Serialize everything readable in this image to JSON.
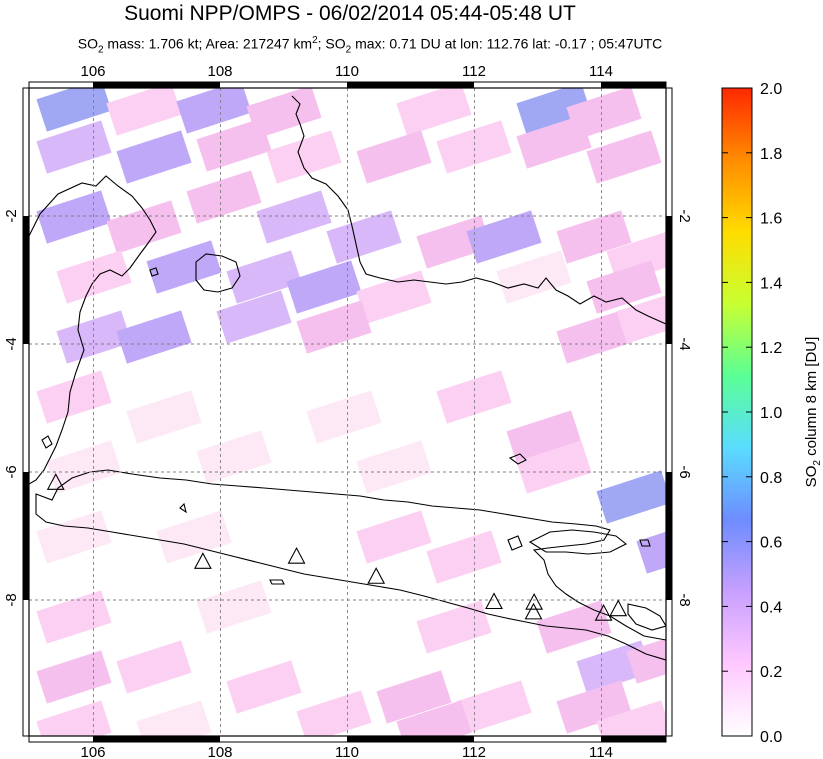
{
  "title": "Suomi NPP/OMPS - 06/02/2014 05:44-05:48 UT",
  "subtitle": {
    "mass_prefix": "SO",
    "mass_text": " mass: 1.706 kt; Area: 217247 km",
    "area_sup": "2",
    "max_prefix": "; SO",
    "max_text": " max: 0.71 DU at lon: 112.76 lat: -0.17 ; 05:47UTC"
  },
  "map": {
    "lon_range": [
      105,
      115
    ],
    "lat_range": [
      -10,
      0
    ],
    "lon_ticks": [
      "106",
      "108",
      "110",
      "112",
      "114"
    ],
    "lat_ticks": [
      "-2",
      "-4",
      "-6",
      "-8"
    ],
    "volcano_icon": "triangle-icon",
    "volcanoes": [
      {
        "lon": 105.42,
        "lat": -6.1
      },
      {
        "lon": 107.73,
        "lat": -7.32
      },
      {
        "lon": 109.2,
        "lat": -7.24
      },
      {
        "lon": 110.45,
        "lat": -7.55
      },
      {
        "lon": 112.3,
        "lat": -7.94
      },
      {
        "lon": 112.93,
        "lat": -7.95
      },
      {
        "lon": 112.92,
        "lat": -8.1
      },
      {
        "lon": 114.02,
        "lat": -8.12
      },
      {
        "lon": 114.25,
        "lat": -8.05
      }
    ]
  },
  "colorbar": {
    "label_prefix": "SO",
    "label_suffix": " column 8 km [DU]",
    "ticks": [
      "2.0",
      "1.8",
      "1.6",
      "1.4",
      "1.2",
      "1.0",
      "0.8",
      "0.6",
      "0.4",
      "0.2",
      "0.0"
    ],
    "range": [
      0,
      2
    ],
    "colors": [
      "#ffffff",
      "#ffc8ff",
      "#c8a0ff",
      "#6e8cff",
      "#5adcff",
      "#5aff96",
      "#c8ff32",
      "#ffdc00",
      "#ff8c00",
      "#ff2800"
    ]
  },
  "palette": {
    "very_light_pink": "#fde8f6",
    "light_pink": "#fbd0f2",
    "pink": "#f6c0ee",
    "lavender": "#d8b8f8",
    "purple": "#c0a8f8",
    "blue": "#a0a8f4"
  }
}
